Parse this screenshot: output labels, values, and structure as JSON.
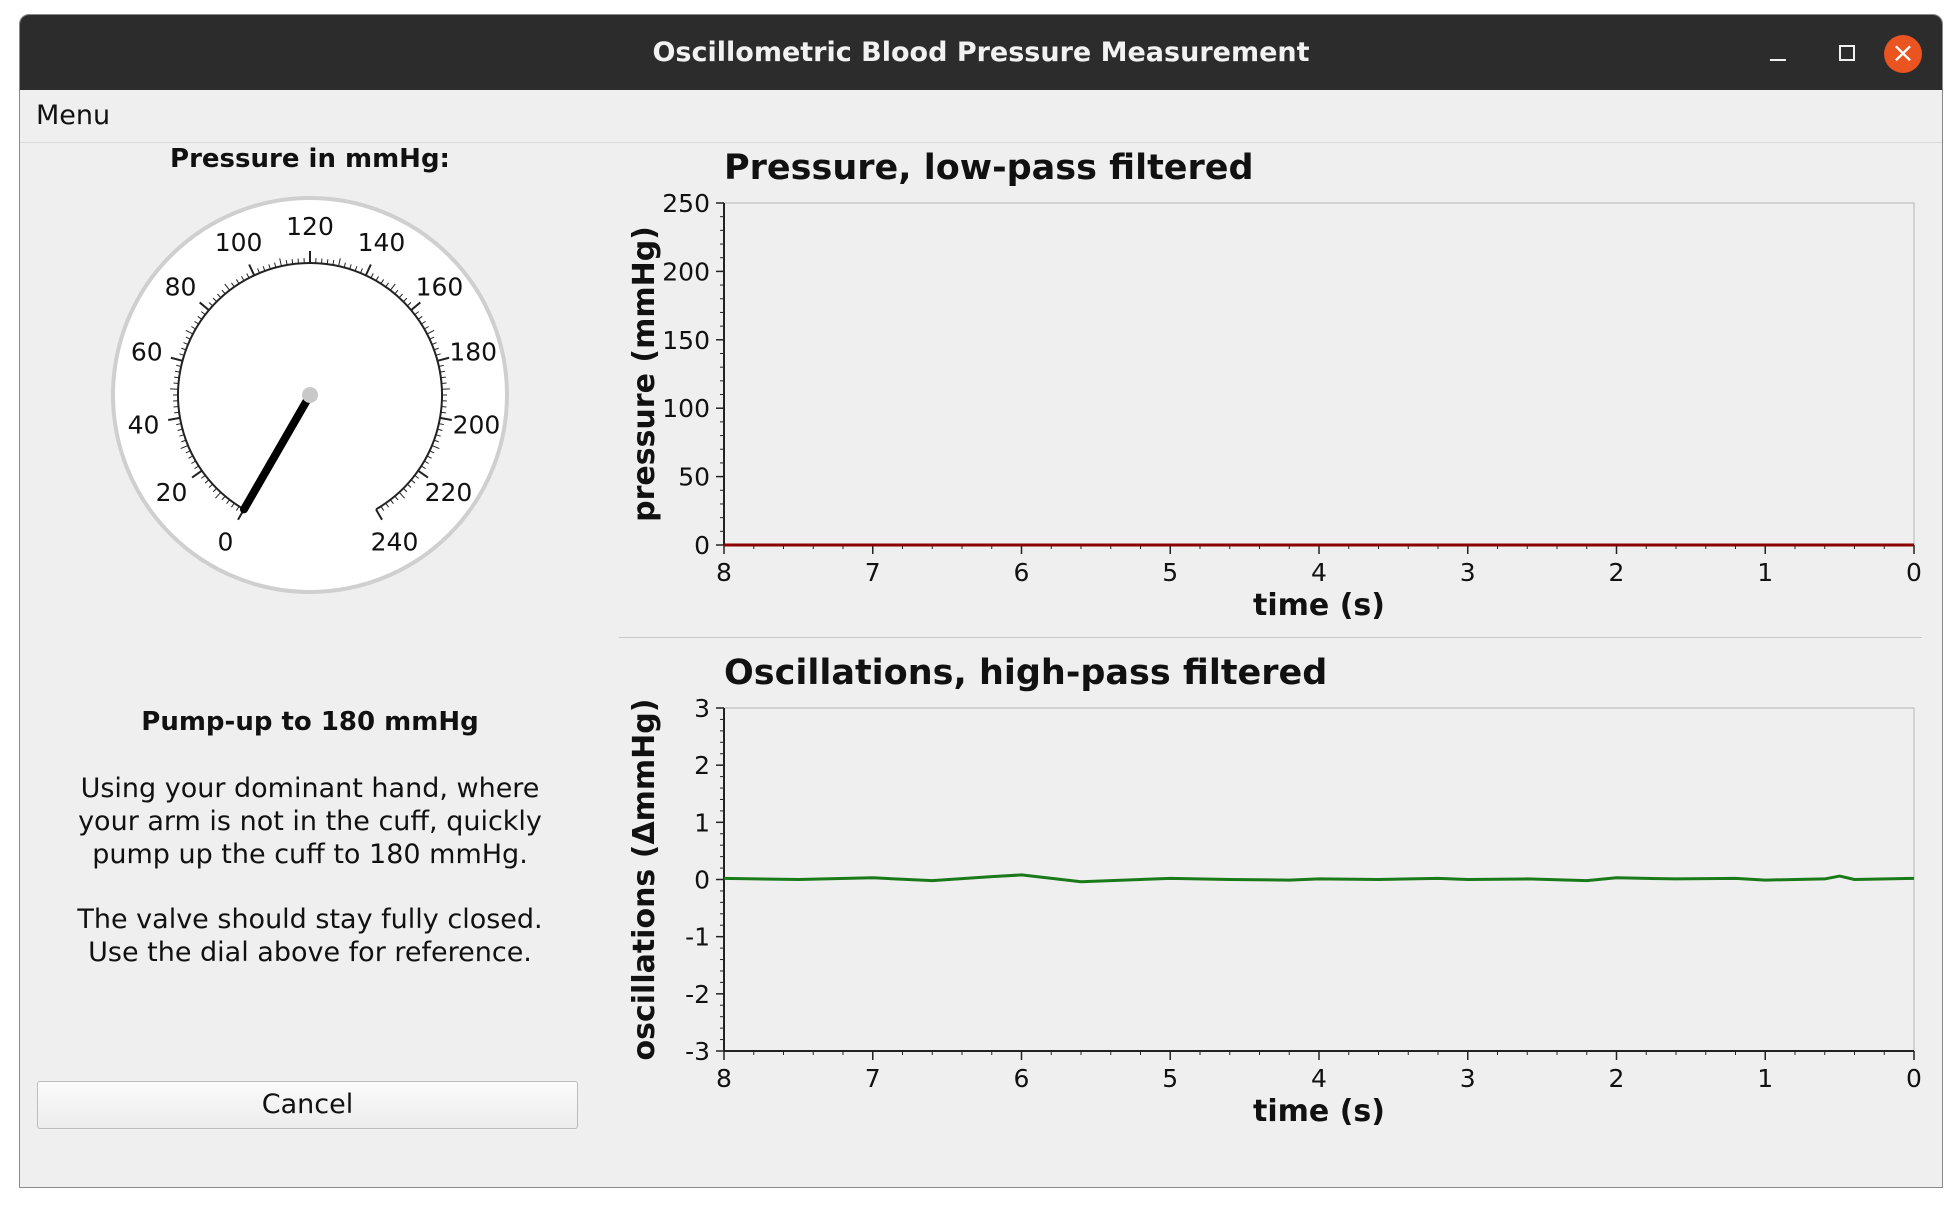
{
  "window": {
    "title": "Oscillometric Blood Pressure Measurement",
    "minimize_glyph": "—",
    "maximize_glyph": "□",
    "close_glyph": "×",
    "close_color": "#e95420"
  },
  "menu": {
    "label": "Menu"
  },
  "left_panel": {
    "pressure_label": "Pressure in mmHg:",
    "gauge": {
      "min": 0,
      "max": 240,
      "value": 0,
      "major_labels": [
        "0",
        "20",
        "40",
        "60",
        "80",
        "100",
        "120",
        "140",
        "160",
        "180",
        "200",
        "220",
        "240"
      ]
    },
    "instruction_title": "Pump-up to 180 mmHg",
    "instruction_p1": [
      "Using your dominant hand, where",
      "your arm is not in the cuff, quickly",
      "pump up the cuff to 180 mmHg."
    ],
    "instruction_p2": [
      "The valve should stay fully closed.",
      "Use the dial above for reference."
    ],
    "cancel_label": "Cancel"
  },
  "plots": {
    "top_title": "Pressure, low-pass filtered",
    "bottom_title": "Oscillations, high-pass filtered"
  },
  "chart_data": [
    {
      "type": "line",
      "title": "Pressure, low-pass filtered",
      "xlabel": "time (s)",
      "ylabel": "pressure (mmHg)",
      "xlim": [
        8,
        0
      ],
      "ylim": [
        0,
        250
      ],
      "x_ticks": [
        "8",
        "7",
        "6",
        "5",
        "4",
        "3",
        "2",
        "1",
        "0"
      ],
      "y_ticks": [
        "250",
        "200",
        "150",
        "100",
        "50",
        "0"
      ],
      "color": "#8b0000",
      "series": [
        {
          "x": [
            8,
            0
          ],
          "y": [
            0,
            0
          ]
        }
      ]
    },
    {
      "type": "line",
      "title": "Oscillations, high-pass filtered",
      "xlabel": "time (s)",
      "ylabel": "oscillations (ΔmmHg)",
      "xlim": [
        8,
        0
      ],
      "ylim": [
        -3,
        3
      ],
      "x_ticks": [
        "8",
        "7",
        "6",
        "5",
        "4",
        "3",
        "2",
        "1",
        "0"
      ],
      "y_ticks": [
        "3",
        "2",
        "1",
        "0",
        "-1",
        "-2",
        "-3"
      ],
      "color": "#1a7a1a",
      "series": [
        {
          "x": [
            8.0,
            7.5,
            7.0,
            6.6,
            6.2,
            6.0,
            5.6,
            5.2,
            5.0,
            4.6,
            4.2,
            4.0,
            3.6,
            3.2,
            3.0,
            2.6,
            2.2,
            2.0,
            1.6,
            1.2,
            1.0,
            0.6,
            0.5,
            0.4,
            0.0
          ],
          "y": [
            0.02,
            0.0,
            0.03,
            -0.02,
            0.05,
            0.08,
            -0.04,
            0.0,
            0.02,
            0.0,
            -0.01,
            0.01,
            0.0,
            0.02,
            0.0,
            0.01,
            -0.02,
            0.03,
            0.01,
            0.02,
            -0.01,
            0.01,
            0.06,
            0.0,
            0.02
          ]
        }
      ]
    }
  ]
}
